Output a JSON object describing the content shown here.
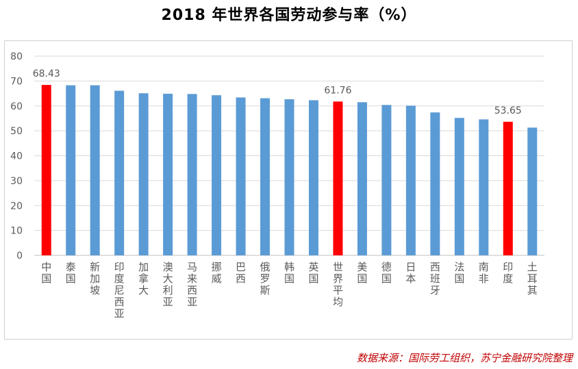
{
  "title": "2018 年世界各国劳动参与率（%）",
  "source": "数据来源：国际劳工组织，苏宁金融研究院整理",
  "colors": {
    "default_bar": "#5b9bd5",
    "highlight_bar": "#ff0000",
    "axis_text": "#595959",
    "grid": "#d9d9d9"
  },
  "chart_data": {
    "type": "bar",
    "title": "2018 年世界各国劳动参与率（%）",
    "xlabel": "",
    "ylabel": "",
    "ylim": [
      0,
      80
    ],
    "yticks": [
      0,
      10,
      20,
      30,
      40,
      50,
      60,
      70,
      80
    ],
    "grid": true,
    "legend": "none",
    "categories": [
      "中国",
      "泰国",
      "新加坡",
      "印度尼西亚",
      "加拿大",
      "澳大利亚",
      "马来西亚",
      "挪威",
      "巴西",
      "俄罗斯",
      "韩国",
      "英国",
      "世界平均",
      "美国",
      "德国",
      "日本",
      "西班牙",
      "法国",
      "南非",
      "印度",
      "土耳其"
    ],
    "values": [
      68.43,
      68.3,
      68.3,
      66.1,
      65.1,
      64.9,
      64.8,
      64.3,
      63.4,
      63.1,
      62.7,
      62.3,
      61.76,
      61.5,
      60.4,
      60.1,
      57.4,
      55.2,
      54.6,
      53.65,
      51.3
    ],
    "highlighted": [
      "中国",
      "世界平均",
      "印度"
    ],
    "data_labels": [
      {
        "category": "中国",
        "text": "68.43"
      },
      {
        "category": "世界平均",
        "text": "61.76"
      },
      {
        "category": "印度",
        "text": "53.65"
      }
    ]
  }
}
